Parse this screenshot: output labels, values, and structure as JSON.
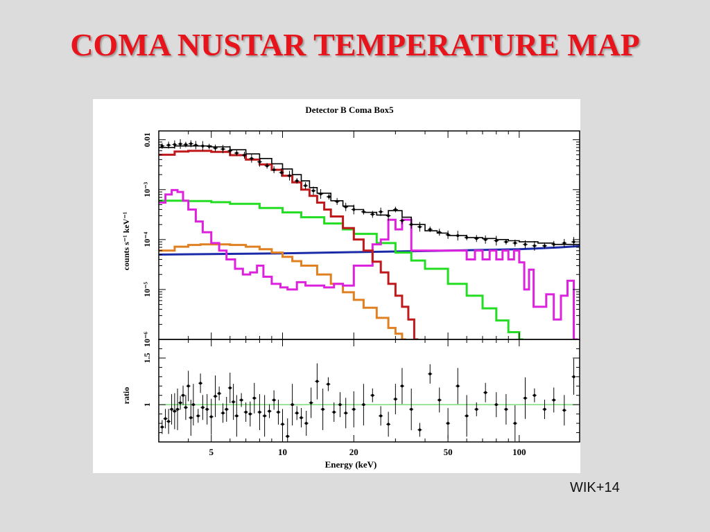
{
  "slide": {
    "title": "COMA NUSTAR TEMPERATURE MAP",
    "citation": "WIK+14"
  },
  "colors": {
    "background": "#dcdcdc",
    "title": "#e8141c",
    "data": "#000000",
    "model_total": "#000000",
    "hot_component": "#c0191c",
    "warm_component": "#22dd22",
    "cool_component": "#e08020",
    "line_component": "#dd22dd",
    "background_component": "#1a2aa8",
    "ratio_reference": "#33cc33"
  },
  "chart_data": [
    {
      "type": "line",
      "title": "Detector B Coma Box5",
      "xlabel": "Energy (keV)",
      "ylabel": "counts s⁻¹ keV⁻¹",
      "x_scale": "log",
      "y_scale": "log",
      "xlim": [
        3,
        180
      ],
      "ylim": [
        1e-06,
        0.015
      ],
      "x_ticks": [
        5,
        10,
        20,
        50,
        100
      ],
      "x_tick_labels": [
        "5",
        "10",
        "20",
        "50",
        "100"
      ],
      "y_ticks": [
        0.01,
        0.001,
        0.0001,
        1e-05,
        1e-06
      ],
      "y_tick_labels": [
        "0.01",
        "10⁻³",
        "10⁻⁴",
        "10⁻⁵",
        "10⁻⁶"
      ],
      "series": [
        {
          "key": "data",
          "style": "points",
          "x": [
            3.1,
            3.3,
            3.5,
            3.7,
            3.9,
            4.1,
            4.3,
            4.6,
            4.9,
            5.2,
            5.6,
            6.0,
            6.4,
            6.9,
            7.4,
            8.0,
            8.6,
            9.2,
            9.9,
            10.7,
            11.5,
            12.5,
            13.5,
            14.5,
            15.7,
            17.0,
            18.5,
            20,
            22,
            24,
            26,
            28,
            30,
            32,
            35,
            38,
            42,
            46,
            50,
            55,
            60,
            66,
            72,
            80,
            88,
            96,
            106,
            116,
            128,
            140,
            155,
            170
          ],
          "y": [
            0.0075,
            0.0078,
            0.008,
            0.0082,
            0.008,
            0.0083,
            0.0078,
            0.0075,
            0.0073,
            0.0068,
            0.0065,
            0.006,
            0.0054,
            0.0049,
            0.0042,
            0.0036,
            0.003,
            0.0025,
            0.0022,
            0.0019,
            0.0015,
            0.0012,
            0.00095,
            0.00082,
            0.00072,
            0.00058,
            0.00045,
            0.0004,
            0.00036,
            0.00032,
            0.00036,
            0.0003,
            0.0004,
            0.00024,
            0.0002,
            0.00018,
            0.00016,
            0.00014,
            0.000125,
            0.00012,
            0.00011,
            0.000105,
            0.0001,
            9.5e-05,
            9e-05,
            8.5e-05,
            8e-05,
            7.5e-05,
            7.5e-05,
            8e-05,
            8.5e-05,
            9e-05
          ]
        },
        {
          "key": "model_total",
          "style": "step",
          "x": [
            3,
            3.5,
            4,
            5,
            6,
            7,
            8,
            9,
            10,
            11,
            12,
            13,
            14,
            16,
            18,
            20,
            22,
            25,
            28,
            32,
            35,
            40,
            45,
            50,
            60,
            70,
            80,
            90,
            100,
            120,
            140,
            160,
            180
          ],
          "y": [
            0.007,
            0.0075,
            0.0075,
            0.0072,
            0.0063,
            0.0052,
            0.0042,
            0.0033,
            0.0026,
            0.002,
            0.0015,
            0.0011,
            0.00085,
            0.0006,
            0.00047,
            0.0004,
            0.00035,
            0.00031,
            0.00038,
            0.00028,
            0.0002,
            0.00015,
            0.000135,
            0.00012,
            0.00011,
            0.000105,
            0.0001,
            9.5e-05,
            9e-05,
            8.5e-05,
            8e-05,
            8e-05,
            8e-05
          ]
        },
        {
          "key": "hot_component",
          "style": "step",
          "x": [
            3,
            3.5,
            4,
            5,
            6,
            7,
            8,
            9,
            10,
            11,
            12,
            13,
            14,
            15,
            16,
            18,
            20,
            22,
            24,
            26,
            28,
            30,
            32,
            34,
            36
          ],
          "y": [
            0.005,
            0.0058,
            0.006,
            0.0057,
            0.0049,
            0.004,
            0.0032,
            0.0025,
            0.0019,
            0.0014,
            0.001,
            0.00075,
            0.00055,
            0.0004,
            0.00029,
            0.00017,
            0.0001,
            6e-05,
            3.6e-05,
            2.2e-05,
            1.3e-05,
            7.5e-06,
            4.5e-06,
            2.5e-06,
            1e-06
          ]
        },
        {
          "key": "warm_component",
          "style": "step",
          "x": [
            3,
            4,
            5,
            6,
            8,
            10,
            12,
            15,
            18,
            20,
            25,
            30,
            35,
            40,
            50,
            60,
            70,
            80,
            90,
            100
          ],
          "y": [
            0.0006,
            0.00059,
            0.00056,
            0.00052,
            0.00043,
            0.00035,
            0.00028,
            0.00021,
            0.00016,
            0.00013,
            8.5e-05,
            5.5e-05,
            3.8e-05,
            2.6e-05,
            1.3e-05,
            7.5e-06,
            4.2e-06,
            2.4e-06,
            1.4e-06,
            1e-06
          ]
        },
        {
          "key": "cool_component",
          "style": "step",
          "x": [
            3,
            3.5,
            4,
            4.5,
            5,
            6,
            7,
            8,
            9,
            10,
            11,
            12,
            14,
            16,
            18,
            20,
            22,
            25,
            28,
            30,
            32
          ],
          "y": [
            6e-05,
            7.2e-05,
            7.8e-05,
            8e-05,
            8e-05,
            7.8e-05,
            7.2e-05,
            6.4e-05,
            5.5e-05,
            4.5e-05,
            3.7e-05,
            3e-05,
            2e-05,
            1.3e-05,
            8.8e-06,
            6.2e-06,
            4.3e-06,
            2.7e-06,
            1.7e-06,
            1.3e-06,
            1e-06
          ]
        },
        {
          "key": "line_component",
          "style": "step",
          "x": [
            3,
            3.2,
            3.4,
            3.6,
            3.8,
            4.0,
            4.3,
            4.6,
            5.0,
            5.4,
            5.8,
            6.3,
            6.8,
            7.3,
            7.8,
            8.3,
            9.0,
            9.8,
            10.5,
            11.5,
            12.5,
            13.5,
            15,
            16.5,
            18,
            20,
            22,
            24,
            26,
            28,
            30,
            32,
            35,
            40,
            45,
            50,
            55,
            60,
            65,
            70,
            75,
            80,
            85,
            90,
            95,
            100,
            105,
            110,
            115,
            120,
            130,
            140,
            150,
            160,
            170
          ],
          "y": [
            0.00055,
            0.0008,
            0.00098,
            0.0009,
            0.0006,
            0.0004,
            0.00023,
            0.00014,
            8.5e-05,
            6e-05,
            4e-05,
            2.6e-05,
            2e-05,
            2.2e-05,
            3e-05,
            1.8e-05,
            1.3e-05,
            1.1e-05,
            1e-05,
            1.4e-05,
            1.2e-05,
            1.2e-05,
            1.1e-05,
            1.3e-05,
            1.2e-05,
            3e-05,
            3e-05,
            8e-05,
            0.0001,
            0.00025,
            0.00016,
            0.00025,
            6e-05,
            6e-05,
            6e-05,
            6e-05,
            6e-05,
            4e-05,
            6e-05,
            4e-05,
            6e-05,
            4e-05,
            6e-05,
            4e-05,
            6e-05,
            3.5e-05,
            1e-05,
            2.5e-05,
            4.5e-06,
            4.5e-06,
            8e-06,
            2.5e-06,
            7.5e-06,
            1.5e-05,
            1e-06
          ]
        },
        {
          "key": "background_component",
          "style": "line",
          "x": [
            3,
            10,
            20,
            50,
            100,
            150,
            180
          ],
          "y": [
            5e-05,
            5.3e-05,
            5.6e-05,
            6e-05,
            6.4e-05,
            7e-05,
            7.4e-05
          ]
        }
      ]
    },
    {
      "type": "scatter",
      "ylabel": "ratio",
      "xlabel": "Energy (keV)",
      "x_scale": "log",
      "xlim": [
        3,
        180
      ],
      "ylim": [
        0.6,
        1.7
      ],
      "y_ticks": [
        1,
        1.5
      ],
      "y_tick_labels": [
        "1",
        "1.5"
      ],
      "reference_line": 1,
      "x": [
        3.1,
        3.2,
        3.3,
        3.4,
        3.5,
        3.6,
        3.7,
        3.8,
        3.9,
        4.0,
        4.1,
        4.2,
        4.4,
        4.5,
        4.6,
        4.8,
        5.0,
        5.2,
        5.4,
        5.6,
        5.8,
        6.0,
        6.2,
        6.4,
        6.7,
        7.0,
        7.3,
        7.6,
        8.0,
        8.4,
        8.8,
        9.2,
        9.6,
        10.0,
        10.5,
        11.0,
        11.5,
        12.0,
        12.6,
        13.2,
        14.0,
        14.8,
        15.6,
        16.5,
        17.5,
        18.5,
        20,
        22,
        24,
        26,
        28,
        30,
        32,
        35,
        38,
        42,
        46,
        50,
        55,
        60,
        66,
        72,
        80,
        88,
        96,
        106,
        116,
        128,
        140,
        155,
        170
      ],
      "y": [
        0.76,
        0.85,
        0.82,
        0.95,
        0.93,
        0.95,
        1.02,
        1.1,
        0.97,
        1.2,
        0.86,
        1.0,
        0.88,
        1.23,
        0.97,
        0.95,
        0.87,
        1.09,
        1.12,
        0.91,
        0.95,
        1.18,
        1.03,
        0.88,
        1.05,
        0.92,
        0.9,
        1.07,
        0.92,
        0.88,
        0.93,
        1.05,
        0.92,
        0.79,
        0.66,
        1.0,
        0.91,
        0.86,
        0.8,
        1.02,
        1.25,
        0.95,
        1.22,
        0.92,
        1.0,
        0.91,
        0.95,
        1.0,
        1.1,
        0.88,
        0.79,
        1.06,
        1.2,
        0.95,
        0.73,
        1.33,
        1.05,
        0.8,
        1.2,
        0.88,
        0.95,
        1.13,
        1.0,
        0.95,
        0.8,
        1.07,
        1.1,
        0.95,
        1.05,
        0.94,
        1.3
      ]
    }
  ]
}
